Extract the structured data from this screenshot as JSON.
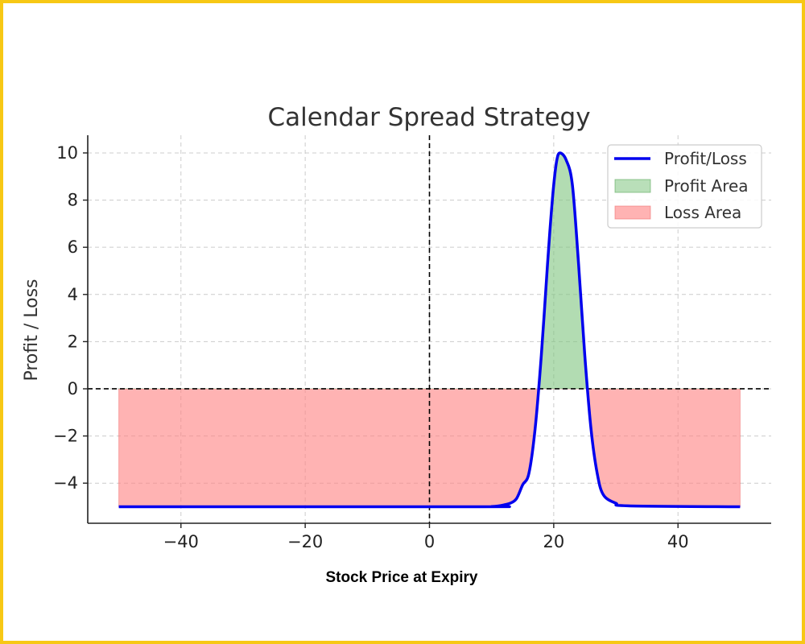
{
  "chart_data": {
    "type": "line",
    "title": "Calendar Spread Strategy",
    "xlabel": "Stock Price at Expiry",
    "ylabel": "Profit / Loss",
    "xlim": [
      -55,
      55
    ],
    "ylim": [
      -5.7,
      10.75
    ],
    "xticks": [
      -40,
      -20,
      0,
      20,
      40
    ],
    "xtick_labels": [
      "−40",
      "−20",
      "0",
      "20",
      "40"
    ],
    "yticks": [
      -4,
      -2,
      0,
      2,
      4,
      6,
      8,
      10
    ],
    "ytick_labels": [
      "−4",
      "−2",
      "0",
      "2",
      "4",
      "6",
      "8",
      "10"
    ],
    "grid": true,
    "legend_position": "top-right",
    "legend": [
      "Profit/Loss",
      "Profit Area",
      "Loss Area"
    ],
    "reference_lines": {
      "horizontal_y": 0,
      "vertical_x": 0
    },
    "series": [
      {
        "name": "Profit/Loss",
        "x": [
          -50,
          8,
          10,
          11,
          12,
          13,
          14,
          15,
          16,
          17,
          18,
          19,
          19.5,
          20,
          20.5,
          21,
          22,
          23,
          24,
          25,
          26,
          27,
          28,
          30,
          32,
          50
        ],
        "y": [
          -5,
          -5,
          -4.99,
          -4.97,
          -4.92,
          -4.85,
          -4.66,
          -4.07,
          -3.59,
          -1.7,
          1.41,
          5.28,
          7.1,
          8.65,
          9.7,
          10,
          9.7,
          8.65,
          5.28,
          1.41,
          -1.7,
          -3.59,
          -4.5,
          -4.85,
          -4.96,
          -5
        ]
      }
    ],
    "colors": {
      "line": "#0000EE",
      "profit": "#7FC47F",
      "loss": "#FF8080",
      "border": "#F7C815"
    }
  }
}
